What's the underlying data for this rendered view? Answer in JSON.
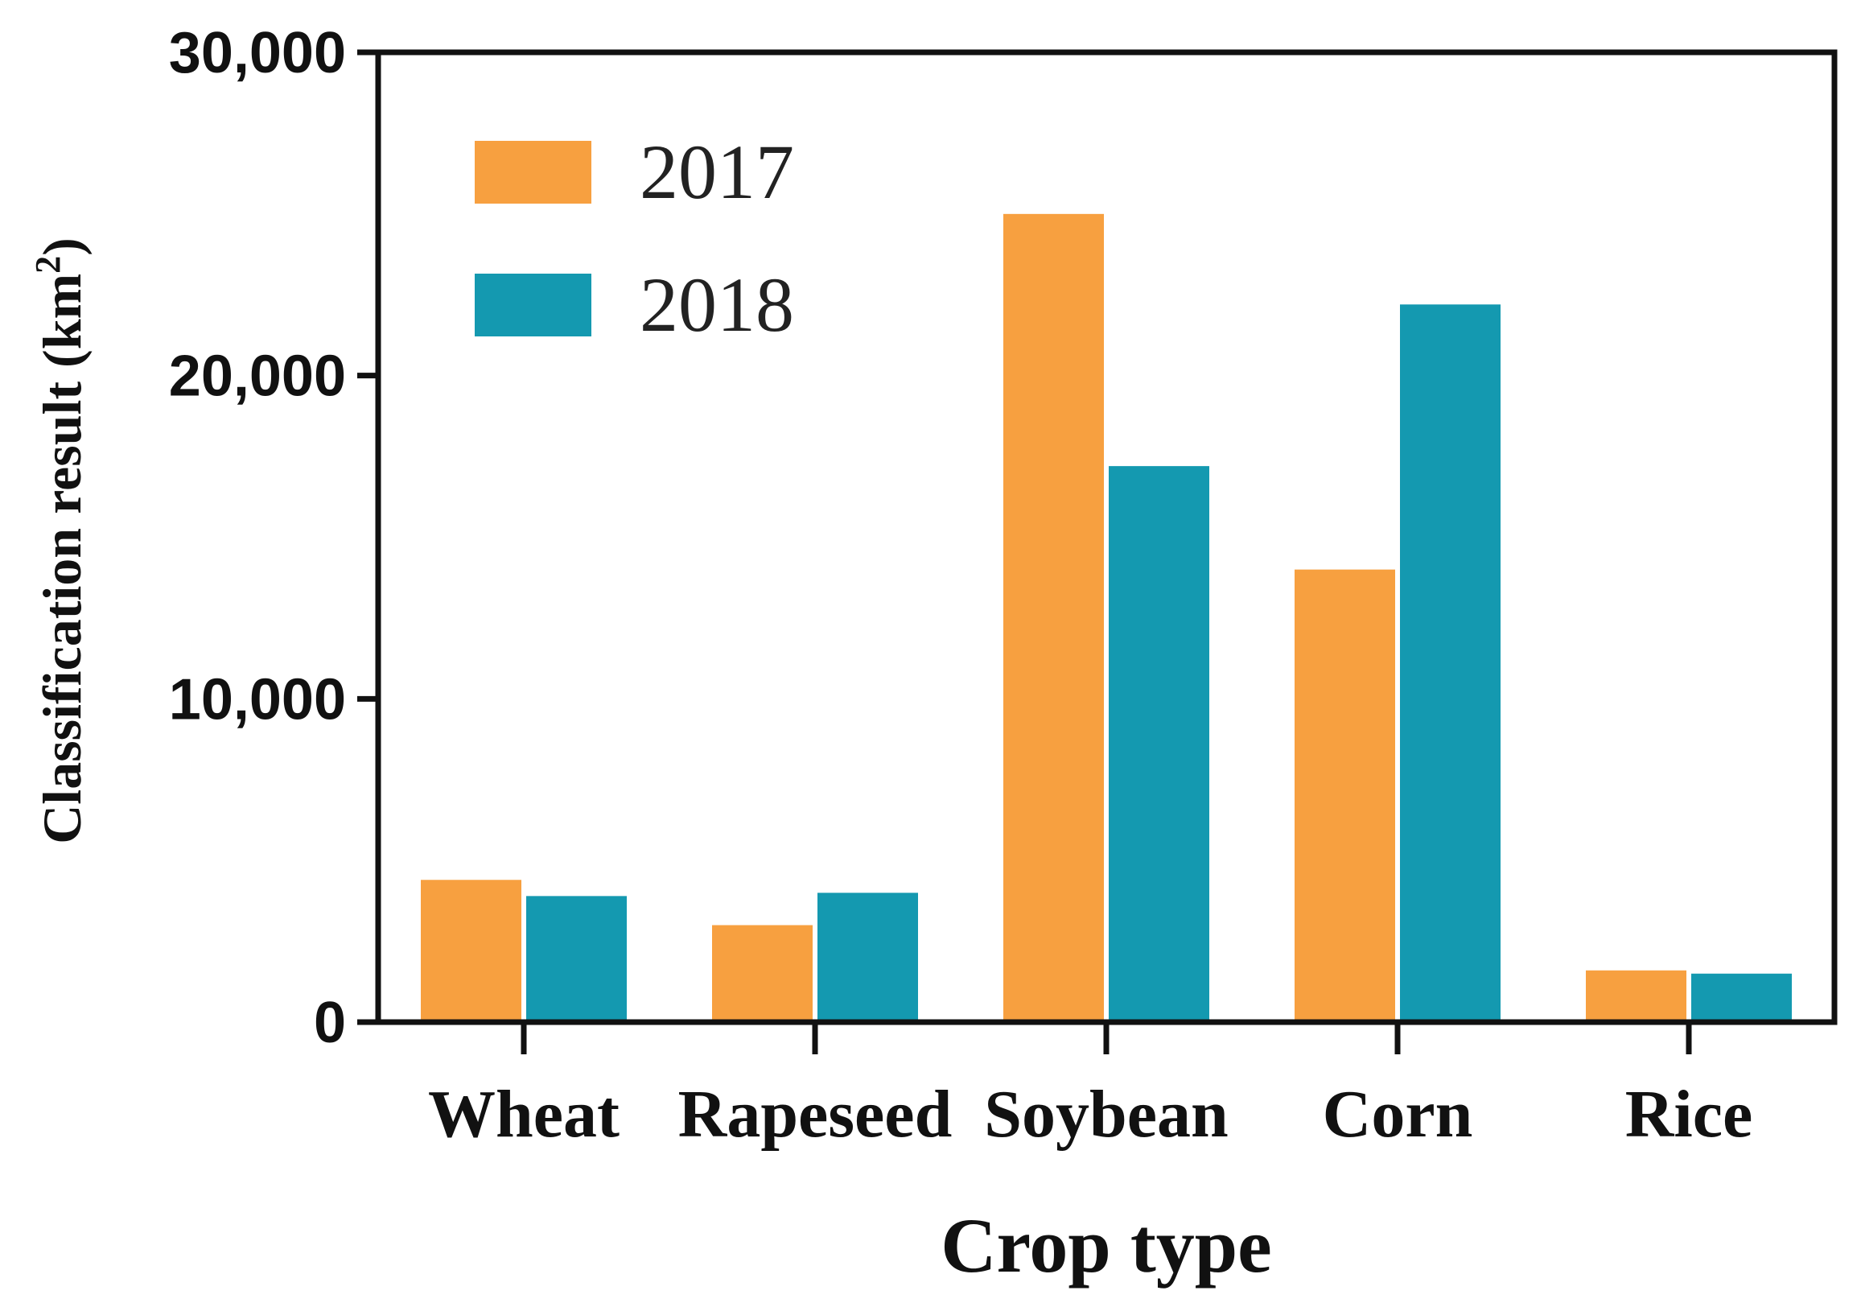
{
  "chart_data": {
    "type": "bar",
    "title": "",
    "xlabel": "Crop type",
    "ylabel": "Classification result (km",
    "ylabel_superscript": "2",
    "ylabel_suffix": ")",
    "categories": [
      "Wheat",
      "Rapeseed",
      "Soybean",
      "Corn",
      "Rice"
    ],
    "series": [
      {
        "name": "2017",
        "color": "#F7A040",
        "values": [
          4400,
          3000,
          25000,
          14000,
          1600
        ]
      },
      {
        "name": "2018",
        "color": "#1499B0",
        "values": [
          3900,
          4000,
          17200,
          22200,
          1500
        ]
      }
    ],
    "ylim": [
      0,
      30000
    ],
    "yticks": [
      0,
      10000,
      20000,
      30000
    ],
    "ytick_labels": [
      "0",
      "10,000",
      "20,000",
      "30,000"
    ],
    "legend_position": "top-left",
    "grid": false
  }
}
